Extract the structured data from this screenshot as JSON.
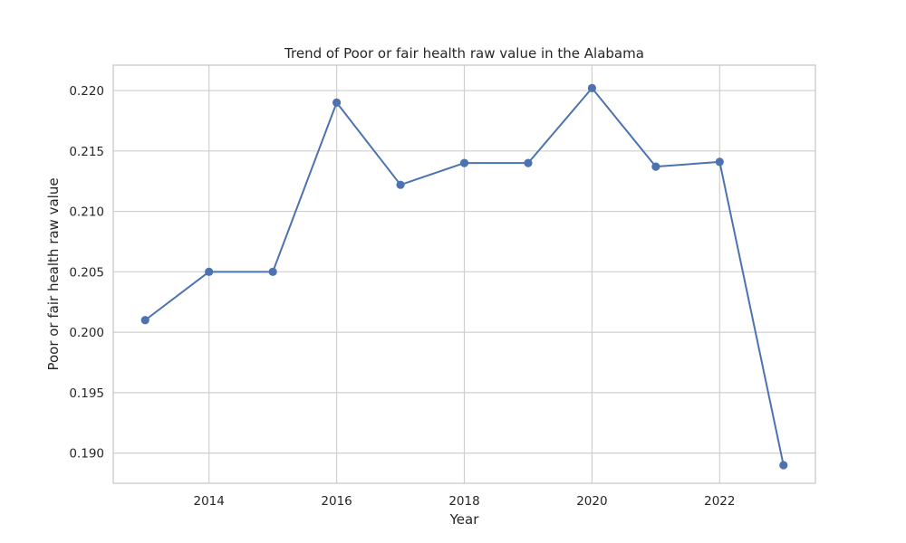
{
  "chart_data": {
    "type": "line",
    "title": "Trend of Poor or fair health raw value in the Alabama",
    "xlabel": "Year",
    "ylabel": "Poor or fair health raw value",
    "x": [
      2013,
      2014,
      2015,
      2016,
      2017,
      2018,
      2019,
      2020,
      2021,
      2022,
      2023
    ],
    "series": [
      {
        "values": [
          0.201,
          0.205,
          0.205,
          0.219,
          0.2122,
          0.214,
          0.214,
          0.2202,
          0.2137,
          0.2141,
          0.189
        ],
        "color": "#4c72b0"
      }
    ],
    "xticks": [
      2014,
      2016,
      2018,
      2020,
      2022
    ],
    "xtick_labels": [
      "2014",
      "2016",
      "2018",
      "2020",
      "2022"
    ],
    "yticks": [
      0.19,
      0.195,
      0.2,
      0.205,
      0.21,
      0.215,
      0.22
    ],
    "ytick_labels": [
      "0.190",
      "0.195",
      "0.200",
      "0.205",
      "0.210",
      "0.215",
      "0.220"
    ],
    "xlim": [
      2012.5,
      2023.5
    ],
    "ylim": [
      0.1875,
      0.2221
    ],
    "grid": true,
    "marker": "circle",
    "colors": {
      "line": "#4c72b0",
      "grid": "#cfcfcf",
      "frame": "#cccccc"
    }
  }
}
